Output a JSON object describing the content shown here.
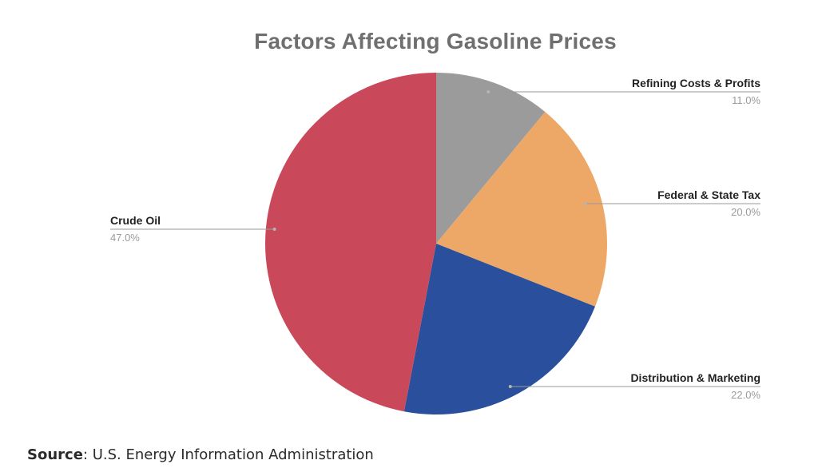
{
  "chart_data": {
    "type": "pie",
    "title": "Factors Affecting Gasoline Prices",
    "slices": [
      {
        "label": "Refining Costs & Profits",
        "value": 11.0,
        "pct_label": "11.0%",
        "color": "#9b9b9b"
      },
      {
        "label": "Federal & State Tax",
        "value": 20.0,
        "pct_label": "20.0%",
        "color": "#eda766"
      },
      {
        "label": "Distribution & Marketing",
        "value": 22.0,
        "pct_label": "22.0%",
        "color": "#2a4f9c"
      },
      {
        "label": "Crude Oil",
        "value": 47.0,
        "pct_label": "47.0%",
        "color": "#c9495a"
      }
    ],
    "legend": "none",
    "start_angle": "12 o'clock, clockwise"
  },
  "source": {
    "label": "Source",
    "text": ": U.S. Energy Information Administration"
  }
}
